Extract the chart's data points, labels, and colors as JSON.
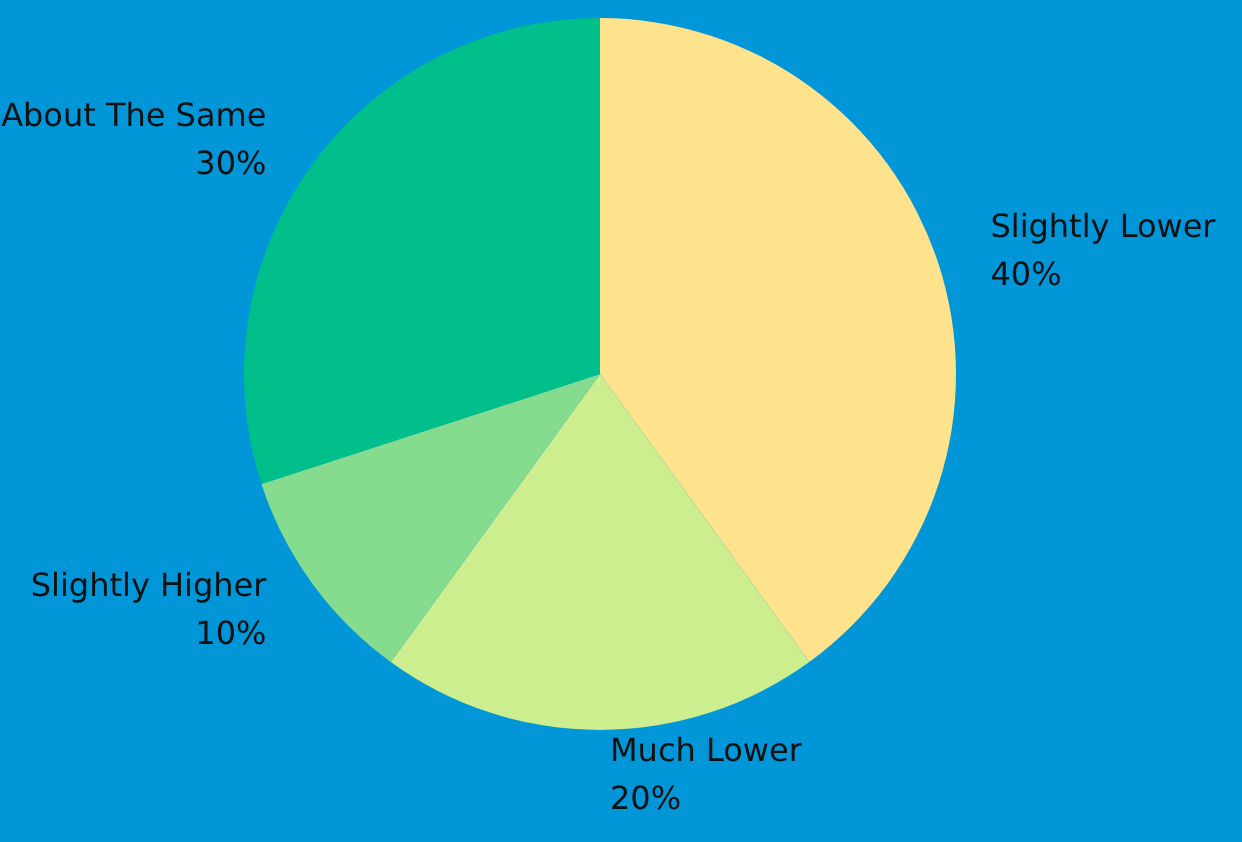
{
  "chart_data": {
    "type": "pie",
    "categories": [
      "Slightly Lower",
      "Much Lower",
      "Slightly Higher",
      "About The Same"
    ],
    "values": [
      40,
      20,
      10,
      30
    ],
    "value_labels": [
      "40%",
      "20%",
      "10%",
      "30%"
    ],
    "colors": [
      "#ffe28c",
      "#cdee8f",
      "#85dc8f",
      "#00bf8a"
    ]
  }
}
